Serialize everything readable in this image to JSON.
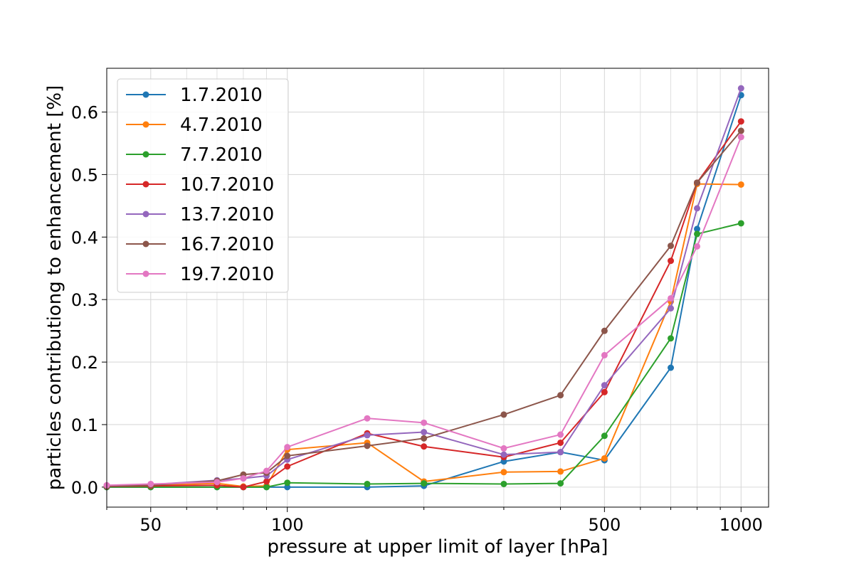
{
  "chart_data": {
    "type": "line",
    "title": "",
    "xlabel": "pressure at upper limit of layer [hPa]",
    "ylabel": "particles contributiong to enhancement [%]",
    "xscale": "log",
    "xlim": [
      40,
      1150
    ],
    "ylim": [
      -0.032,
      0.67
    ],
    "xticks": [
      50,
      100,
      500,
      1000
    ],
    "xtick_labels": [
      "50",
      "100",
      "500",
      "1000"
    ],
    "yticks": [
      0.0,
      0.1,
      0.2,
      0.3,
      0.4,
      0.5,
      0.6
    ],
    "ytick_labels": [
      "0.0",
      "0.1",
      "0.2",
      "0.3",
      "0.4",
      "0.5",
      "0.6"
    ],
    "grid": true,
    "legend_position": "upper-left",
    "x": [
      40,
      50,
      70,
      80,
      90,
      100,
      150,
      200,
      300,
      400,
      500,
      700,
      800,
      1000
    ],
    "series": [
      {
        "name": "1.7.2010",
        "color": "#1f77b4",
        "values": [
          0.0,
          0.0,
          0.0,
          0.0,
          0.0,
          0.0,
          0.0,
          0.002,
          0.041,
          0.056,
          0.043,
          0.191,
          0.413,
          0.627
        ]
      },
      {
        "name": "4.7.2010",
        "color": "#ff7f0e",
        "values": [
          0.002,
          0.003,
          0.006,
          0.001,
          0.002,
          0.06,
          0.071,
          0.009,
          0.024,
          0.025,
          0.046,
          0.297,
          0.485,
          0.484
        ]
      },
      {
        "name": "7.7.2010",
        "color": "#2ca02c",
        "values": [
          0.0,
          0.0,
          0.0,
          0.0,
          0.0,
          0.007,
          0.005,
          0.006,
          0.005,
          0.006,
          0.082,
          0.238,
          0.405,
          0.422
        ]
      },
      {
        "name": "10.7.2010",
        "color": "#d62728",
        "values": [
          0.001,
          0.002,
          0.003,
          0.0,
          0.009,
          0.033,
          0.086,
          0.065,
          0.048,
          0.071,
          0.152,
          0.362,
          0.487,
          0.585
        ]
      },
      {
        "name": "13.7.2010",
        "color": "#9467bd",
        "values": [
          0.002,
          0.004,
          0.011,
          0.014,
          0.018,
          0.044,
          0.083,
          0.088,
          0.052,
          0.056,
          0.163,
          0.286,
          0.446,
          0.638
        ]
      },
      {
        "name": "16.7.2010",
        "color": "#8c564b",
        "values": [
          0.001,
          0.003,
          0.01,
          0.02,
          0.023,
          0.05,
          0.066,
          0.078,
          0.116,
          0.147,
          0.25,
          0.386,
          0.487,
          0.57
        ]
      },
      {
        "name": "19.7.2010",
        "color": "#e377c2",
        "values": [
          0.003,
          0.005,
          0.008,
          0.014,
          0.026,
          0.064,
          0.11,
          0.103,
          0.062,
          0.084,
          0.211,
          0.302,
          0.385,
          0.56
        ]
      }
    ]
  }
}
